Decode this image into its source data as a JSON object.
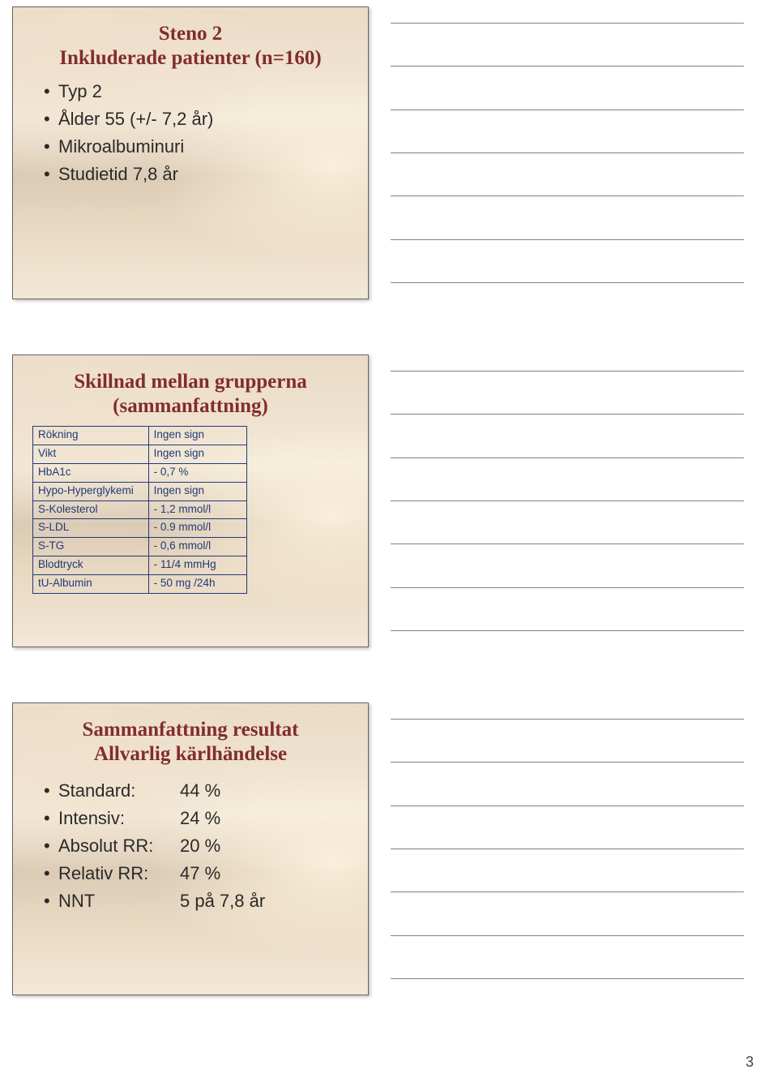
{
  "note_lines": 7,
  "page_number": "3",
  "slide1": {
    "title_line1": "Steno 2",
    "title_line2": "Inkluderade patienter (n=160)",
    "bullets": [
      "Typ 2",
      "Ålder 55 (+/- 7,2 år)",
      "Mikroalbuminuri",
      "Studietid 7,8 år"
    ]
  },
  "slide2": {
    "title_line1": "Skillnad mellan grupperna",
    "title_line2": "(sammanfattning)",
    "rows": [
      [
        "Rökning",
        "Ingen sign"
      ],
      [
        "Vikt",
        "Ingen sign"
      ],
      [
        "HbA1c",
        "- 0,7 %"
      ],
      [
        "Hypo-Hyperglykemi",
        "Ingen sign"
      ],
      [
        "S-Kolesterol",
        "- 1,2 mmol/l"
      ],
      [
        "S-LDL",
        "- 0.9 mmol/l"
      ],
      [
        "S-TG",
        "- 0,6 mmol/l"
      ],
      [
        "Blodtryck",
        "- 11/4 mmHg"
      ],
      [
        "tU-Albumin",
        "- 50 mg /24h"
      ]
    ]
  },
  "slide3": {
    "title_line1": "Sammanfattning resultat",
    "title_line2": "Allvarlig kärlhändelse",
    "items": [
      {
        "k": "Standard:",
        "v": "44 %"
      },
      {
        "k": "Intensiv:",
        "v": "24 %"
      },
      {
        "k": "Absolut RR:",
        "v": "20 %"
      },
      {
        "k": "Relativ RR:",
        "v": "47 %"
      },
      {
        "k": "NNT",
        "v": "5 på 7,8 år"
      }
    ]
  },
  "style": {
    "title_color": "#812d2d",
    "table_border_color": "#1f3a7a",
    "body_text_color": "#2a2a2a",
    "noteline_color": "#808080"
  }
}
